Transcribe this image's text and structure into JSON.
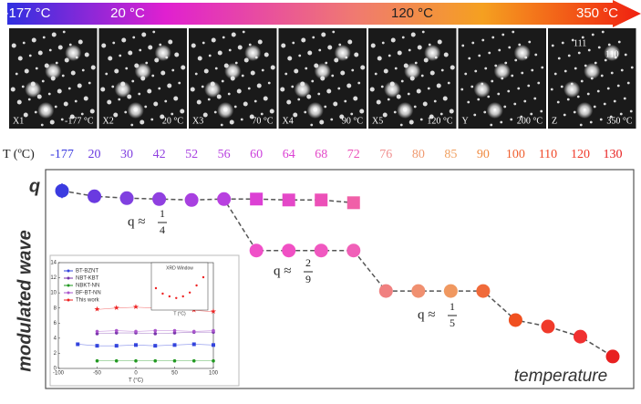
{
  "header": {
    "labels": [
      "-177 °C",
      "20 °C",
      "120 °C",
      "350 °C"
    ]
  },
  "panels": [
    {
      "label": "X1",
      "temp": "-177 °C"
    },
    {
      "label": "X2",
      "temp": "20 °C"
    },
    {
      "label": "X3",
      "temp": "70 °C"
    },
    {
      "label": "X4",
      "temp": "90 °C"
    },
    {
      "label": "X5",
      "temp": "120 °C"
    },
    {
      "label": "Y",
      "temp": "200 °C"
    },
    {
      "label": "Z",
      "temp": "350 °C",
      "indices": [
        "111",
        "110"
      ]
    }
  ],
  "chart_data": {
    "type": "line",
    "x_label": "T (ºC)",
    "ylabel": "q",
    "ylabel_text": "modulated wave",
    "xlabel": "temperature",
    "categories": [
      "-177",
      "20",
      "30",
      "42",
      "52",
      "56",
      "60",
      "64",
      "68",
      "72",
      "76",
      "80",
      "85",
      "90",
      "100",
      "110",
      "120",
      "130"
    ],
    "category_colors": [
      "#3b3be0",
      "#6a3ae0",
      "#8040e0",
      "#9040e0",
      "#a840e0",
      "#b840e0",
      "#cc40dc",
      "#dc40d4",
      "#e448c8",
      "#ec50b8",
      "#f09090",
      "#f09a70",
      "#f0a060",
      "#f08a40",
      "#f06030",
      "#f04828",
      "#f03a2a",
      "#e82020"
    ],
    "ylim": [
      0.147,
      0.266
    ],
    "series": [
      {
        "name": "circles",
        "marker": "circle",
        "values": [
          0.2545,
          0.2515,
          0.2505,
          0.25,
          0.2495,
          0.25,
          0.222,
          0.222,
          0.222,
          0.222,
          0.2,
          0.2,
          0.2,
          0.2,
          0.1842,
          0.1807,
          0.1752,
          0.1644
        ],
        "errors": [
          0.004,
          null,
          null,
          null,
          null,
          null,
          null,
          null,
          null,
          null,
          null,
          null,
          null,
          null,
          null,
          null,
          null,
          null
        ],
        "colors": [
          "#3b3be0",
          "#6a3ae0",
          "#8040e0",
          "#9040e0",
          "#a840e0",
          "#b840e0",
          "#f050c8",
          "#f050c4",
          "#f058c0",
          "#f060b8",
          "#f08080",
          "#f09070",
          "#f09860",
          "#f06a3a",
          "#f05020",
          "#f03a2a",
          "#f03030",
          "#e82020"
        ]
      },
      {
        "name": "squares",
        "marker": "square",
        "values": [
          null,
          null,
          null,
          null,
          null,
          null,
          0.25,
          0.2495,
          0.2495,
          0.248,
          null,
          null,
          null,
          null,
          null,
          null,
          null,
          null
        ],
        "colors": [
          null,
          null,
          null,
          null,
          null,
          null,
          "#dc40d4",
          "#e448c8",
          "#ec50b8",
          "#f060a8",
          null,
          null,
          null,
          null,
          null,
          null,
          null,
          null
        ]
      }
    ],
    "annotations": [
      {
        "text": "q ≈",
        "num": "1",
        "den": "4"
      },
      {
        "text": "q ≈",
        "num": "2",
        "den": "9"
      },
      {
        "text": "q ≈",
        "num": "1",
        "den": "5"
      }
    ]
  },
  "inset": {
    "xlabel": "T (°C)",
    "x": [
      -75,
      -50,
      -25,
      0,
      25,
      50,
      75,
      100
    ],
    "xlim": [
      -100,
      100
    ],
    "xticks": [
      -100,
      -50,
      0,
      50,
      100
    ],
    "ylim": [
      0,
      14
    ],
    "yticks": [
      0,
      2,
      4,
      6,
      8,
      10,
      12,
      14
    ],
    "series": [
      {
        "name": "BT-BZNT",
        "color": "#3344dd",
        "marker": "square",
        "values": [
          3.2,
          3.0,
          3.0,
          3.1,
          3.0,
          3.1,
          3.2,
          3.1
        ]
      },
      {
        "name": "NBT-KBT",
        "color": "#7733aa",
        "marker": "circle",
        "values": [
          null,
          4.6,
          4.7,
          4.7,
          4.6,
          4.7,
          4.8,
          4.8
        ]
      },
      {
        "name": "NBKT-NN",
        "color": "#229922",
        "marker": "circle",
        "values": [
          null,
          1.0,
          1.0,
          1.0,
          1.0,
          1.0,
          1.0,
          1.0
        ]
      },
      {
        "name": "BF-BT-NN",
        "color": "#aa55cc",
        "marker": "circle",
        "values": [
          null,
          4.9,
          5.0,
          4.9,
          5.0,
          5.0,
          4.9,
          5.0
        ]
      },
      {
        "name": "This work",
        "color": "#ee2222",
        "marker": "star",
        "values": [
          null,
          7.8,
          8.0,
          8.1,
          8.0,
          7.9,
          7.7,
          7.5
        ]
      }
    ],
    "window": {
      "title": "XRD Window",
      "xlabel": "T (°C)",
      "values": [
        0.3,
        0.2,
        0.15,
        0.12,
        0.15,
        0.22,
        0.35,
        0.5
      ],
      "ylim": [
        0,
        0.6
      ],
      "color": "#ee2222"
    }
  }
}
